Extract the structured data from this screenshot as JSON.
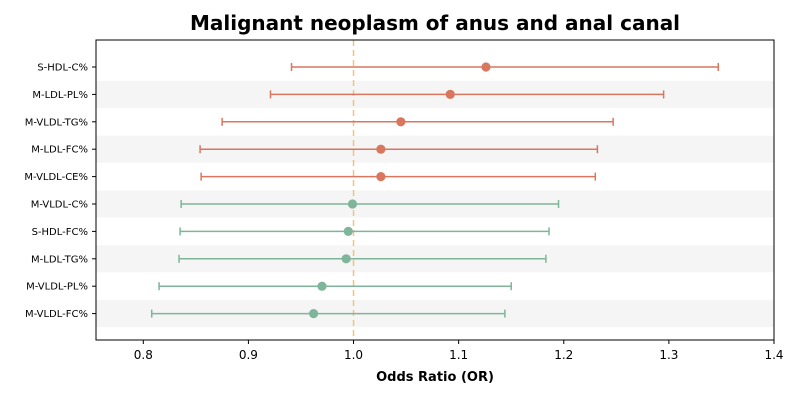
{
  "chart_data": {
    "type": "forest",
    "title": "Malignant neoplasm of anus and anal canal",
    "xlabel": "Odds Ratio (OR)",
    "xlim": [
      0.755,
      1.4
    ],
    "xticks": [
      "0.8",
      "0.9",
      "1.0",
      "1.1",
      "1.2",
      "1.3",
      "1.4"
    ],
    "reference_line": 1.0,
    "rows": [
      {
        "label": "S-HDL-C%",
        "or": 1.126,
        "lower": 0.941,
        "upper": 1.347,
        "color": "#d9775e"
      },
      {
        "label": "M-LDL-PL%",
        "or": 1.092,
        "lower": 0.921,
        "upper": 1.295,
        "color": "#d9775e"
      },
      {
        "label": "M-VLDL-TG%",
        "or": 1.045,
        "lower": 0.875,
        "upper": 1.247,
        "color": "#d9775e"
      },
      {
        "label": "M-LDL-FC%",
        "or": 1.026,
        "lower": 0.854,
        "upper": 1.232,
        "color": "#d9775e"
      },
      {
        "label": "M-VLDL-CE%",
        "or": 1.026,
        "lower": 0.855,
        "upper": 1.23,
        "color": "#d9775e"
      },
      {
        "label": "M-VLDL-C%",
        "or": 0.999,
        "lower": 0.836,
        "upper": 1.195,
        "color": "#7fb59a"
      },
      {
        "label": "S-HDL-FC%",
        "or": 0.995,
        "lower": 0.835,
        "upper": 1.186,
        "color": "#7fb59a"
      },
      {
        "label": "M-LDL-TG%",
        "or": 0.993,
        "lower": 0.834,
        "upper": 1.183,
        "color": "#7fb59a"
      },
      {
        "label": "M-VLDL-PL%",
        "or": 0.97,
        "lower": 0.815,
        "upper": 1.15,
        "color": "#7fb59a"
      },
      {
        "label": "M-VLDL-FC%",
        "or": 0.962,
        "lower": 0.808,
        "upper": 1.144,
        "color": "#7fb59a"
      }
    ],
    "colors": {
      "increase": "#d9775e",
      "decrease": "#7fb59a",
      "reference": "#f3c27c",
      "band": "#f5f5f5"
    }
  }
}
